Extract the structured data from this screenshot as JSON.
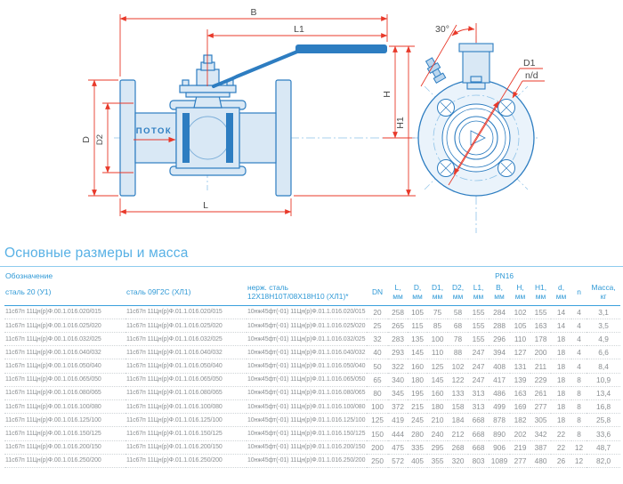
{
  "drawing": {
    "labels": {
      "b": "B",
      "l1": "L1",
      "h": "H",
      "h1": "H1",
      "d": "D",
      "d2": "D2",
      "l": "L",
      "flow": "ПОТОК",
      "angle": "30°",
      "d1": "D1",
      "n_d": "n/d"
    }
  },
  "section": {
    "title": "Основные размеры и масса"
  },
  "table": {
    "designation_header": "Обозначение",
    "pn_header": "PN16",
    "dn_header": "DN",
    "material_headers": [
      "сталь 20 (У1)",
      "сталь 09Г2С (ХЛ1)",
      "нерж. сталь 12Х18Н10Т/08Х18Н10 (ХЛ1)*"
    ],
    "dim_headers": [
      {
        "t": "L,",
        "u": "мм"
      },
      {
        "t": "D,",
        "u": "мм"
      },
      {
        "t": "D1,",
        "u": "мм"
      },
      {
        "t": "D2,",
        "u": "мм"
      },
      {
        "t": "L1,",
        "u": "мм"
      },
      {
        "t": "B,",
        "u": "мм"
      },
      {
        "t": "H,",
        "u": "мм"
      },
      {
        "t": "H1,",
        "u": "мм"
      },
      {
        "t": "d,",
        "u": "мм"
      },
      {
        "t": "n",
        "u": ""
      },
      {
        "t": "Масса,",
        "u": "кг"
      }
    ],
    "rows": [
      [
        "11с67п 11Цн(р)Ф.00.1.016.020/015",
        "11с67п 11Цн(р)Ф.01.1.016.020/015",
        "10нж45фт(-01) 11Цн(р)Ф.01.1.016.020/015",
        "20",
        "258",
        "105",
        "75",
        "58",
        "155",
        "284",
        "102",
        "155",
        "14",
        "4",
        "3,1"
      ],
      [
        "11с67п 11Цн(р)Ф.00.1.016.025/020",
        "11с67п 11Цн(р)Ф.01.1.016.025/020",
        "10нж45фт(-01) 11Цн(р)Ф.01.1.016.025/020",
        "25",
        "265",
        "115",
        "85",
        "68",
        "155",
        "288",
        "105",
        "163",
        "14",
        "4",
        "3,5"
      ],
      [
        "11с67п 11Цн(р)Ф.00.1.016.032/025",
        "11с67п 11Цн(р)Ф.01.1.016.032/025",
        "10нж45фт(-01) 11Цн(р)Ф.01.1.016.032/025",
        "32",
        "283",
        "135",
        "100",
        "78",
        "155",
        "296",
        "110",
        "178",
        "18",
        "4",
        "4,9"
      ],
      [
        "11с67п 11Цн(р)Ф.00.1.016.040/032",
        "11с67п 11Цн(р)Ф.01.1.016.040/032",
        "10нж45фт(-01) 11Цн(р)Ф.01.1.016.040/032",
        "40",
        "293",
        "145",
        "110",
        "88",
        "247",
        "394",
        "127",
        "200",
        "18",
        "4",
        "6,6"
      ],
      [
        "11с67п 11Цн(р)Ф.00.1.016.050/040",
        "11с67п 11Цн(р)Ф.01.1.016.050/040",
        "10нж45фт(-01) 11Цн(р)Ф.01.1.016.050/040",
        "50",
        "322",
        "160",
        "125",
        "102",
        "247",
        "408",
        "131",
        "211",
        "18",
        "4",
        "8,4"
      ],
      [
        "11с67п 11Цн(р)Ф.00.1.016.065/050",
        "11с67п 11Цн(р)Ф.01.1.016.065/050",
        "10нж45фт(-01) 11Цн(р)Ф.01.1.016.065/050",
        "65",
        "340",
        "180",
        "145",
        "122",
        "247",
        "417",
        "139",
        "229",
        "18",
        "8",
        "10,9"
      ],
      [
        "11с67п 11Цн(р)Ф.00.1.016.080/065",
        "11с67п 11Цн(р)Ф.01.1.016.080/065",
        "10нж45фт(-01) 11Цн(р)Ф.01.1.016.080/065",
        "80",
        "345",
        "195",
        "160",
        "133",
        "313",
        "486",
        "163",
        "261",
        "18",
        "8",
        "13,4"
      ],
      [
        "11с67п 11Цн(р)Ф.00.1.016.100/080",
        "11с67п 11Цн(р)Ф.01.1.016.100/080",
        "10нж45фт(-01) 11Цн(р)Ф.01.1.016.100/080",
        "100",
        "372",
        "215",
        "180",
        "158",
        "313",
        "499",
        "169",
        "277",
        "18",
        "8",
        "16,8"
      ],
      [
        "11с67п 11Цн(р)Ф.00.1.016.125/100",
        "11с67п 11Цн(р)Ф.01.1.016.125/100",
        "10нж45фт(-01) 11Цн(р)Ф.01.1.016.125/100",
        "125",
        "419",
        "245",
        "210",
        "184",
        "668",
        "878",
        "182",
        "305",
        "18",
        "8",
        "25,8"
      ],
      [
        "11с67п 11Цн(р)Ф.00.1.016.150/125",
        "11с67п 11Цн(р)Ф.01.1.016.150/125",
        "10нж45фт(-01) 11Цн(р)Ф.01.1.016.150/125",
        "150",
        "444",
        "280",
        "240",
        "212",
        "668",
        "890",
        "202",
        "342",
        "22",
        "8",
        "33,6"
      ],
      [
        "11с67п 11Цн(р)Ф.00.1.016.200/150",
        "11с67п 11Цн(р)Ф.01.1.016.200/150",
        "10нж45фт(-01) 11Цн(р)Ф.01.1.016.200/150",
        "200",
        "475",
        "335",
        "295",
        "268",
        "668",
        "906",
        "219",
        "387",
        "22",
        "12",
        "48,7"
      ],
      [
        "11с67п 11Цн(р)Ф.00.1.016.250/200",
        "11с67п 11Цн(р)Ф.01.1.016.250/200",
        "10нж45фт(-01) 11Цн(р)Ф.01.1.016.250/200",
        "250",
        "572",
        "405",
        "355",
        "320",
        "803",
        "1089",
        "277",
        "480",
        "26",
        "12",
        "82,0"
      ]
    ]
  },
  "colors": {
    "accent_blue": "#58b1e5",
    "header_blue": "#2f99d6",
    "line_blue": "#2d7dc1",
    "fill_blue": "#d9e8f5",
    "dimension_red": "#e8392a",
    "data_gray": "#8b8f92"
  }
}
